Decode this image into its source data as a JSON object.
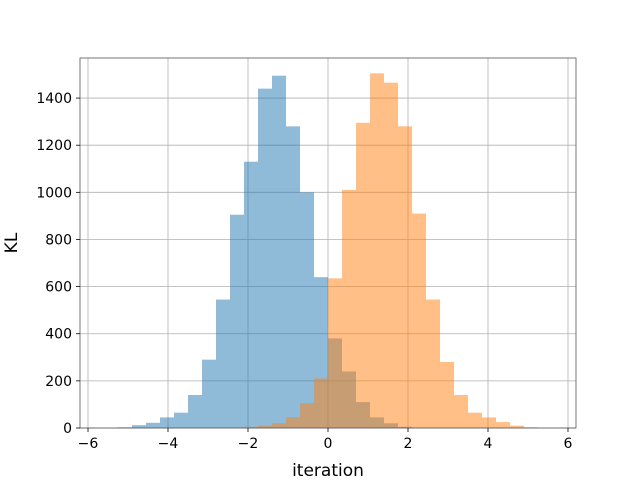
{
  "chart_data": {
    "type": "bar",
    "subtype": "histogram",
    "title": "",
    "xlabel": "iteration",
    "ylabel": "KL",
    "xlim": [
      -6.2,
      6.2
    ],
    "ylim": [
      0,
      1570
    ],
    "grid": true,
    "bin_width": 0.35,
    "xticks": [
      -6,
      -4,
      -2,
      0,
      2,
      4,
      6
    ],
    "xtick_labels": [
      "−6",
      "−4",
      "−2",
      "0",
      "2",
      "4",
      "6"
    ],
    "yticks": [
      0,
      200,
      400,
      600,
      800,
      1000,
      1200,
      1400
    ],
    "ytick_labels": [
      "0",
      "200",
      "400",
      "600",
      "800",
      "1000",
      "1200",
      "1400"
    ],
    "series": [
      {
        "color": "#1f77b4",
        "alpha": 0.5,
        "bins_left": [
          -5.25,
          -4.9,
          -4.55,
          -4.2,
          -3.85,
          -3.5,
          -3.15,
          -2.8,
          -2.45,
          -2.1,
          -1.75,
          -1.4,
          -1.05,
          -0.7,
          -0.35,
          0.0,
          0.35,
          0.7,
          1.05,
          1.4,
          1.75
        ],
        "values": [
          3,
          12,
          22,
          45,
          65,
          140,
          290,
          545,
          905,
          1130,
          1440,
          1495,
          1280,
          1000,
          640,
          380,
          240,
          110,
          45,
          20,
          5
        ]
      },
      {
        "color": "#ff7f0e",
        "alpha": 0.5,
        "bins_left": [
          -2.1,
          -1.75,
          -1.4,
          -1.05,
          -0.7,
          -0.35,
          0.0,
          0.35,
          0.7,
          1.05,
          1.4,
          1.75,
          2.1,
          2.45,
          2.8,
          3.15,
          3.5,
          3.85,
          4.2,
          4.55,
          4.9
        ],
        "values": [
          5,
          10,
          20,
          45,
          105,
          210,
          635,
          1010,
          1295,
          1505,
          1465,
          1280,
          910,
          545,
          280,
          140,
          65,
          45,
          25,
          10,
          3
        ]
      }
    ]
  }
}
